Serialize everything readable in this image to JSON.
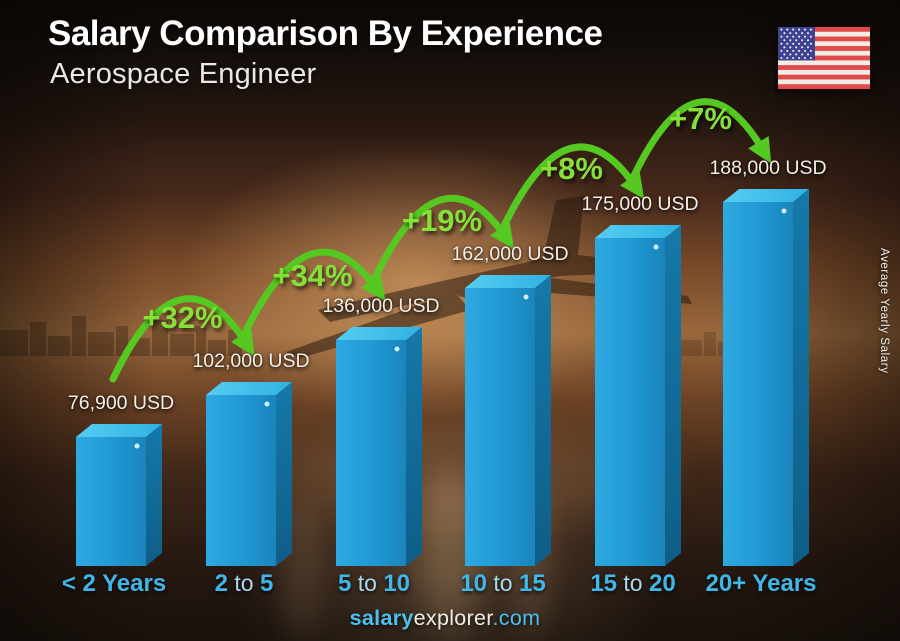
{
  "header": {
    "title": "Salary Comparison By Experience",
    "subtitle": "Aerospace Engineer"
  },
  "y_axis_label": "Average Yearly Salary",
  "footer": {
    "bold": "salary",
    "regular": "explorer",
    "domain": ".com"
  },
  "flag": {
    "country": "United States"
  },
  "colors": {
    "bar_front": "#1f9ad6",
    "bar_top": "#4cc7ee",
    "bar_side": "#11729f",
    "arrow_green": "#55c822",
    "percent_green": "#86e03a",
    "axis_cyan": "#41b6e8",
    "axis_cyan_light": "#a8d9ee",
    "value_text": "#f4efe7",
    "footer_cyan": "#4cc0ee"
  },
  "chart_data": {
    "type": "bar",
    "title": "Salary Comparison By Experience",
    "subtitle": "Aerospace Engineer",
    "currency": "USD",
    "ylabel": "Average Yearly Salary",
    "ylim": [
      0,
      200000
    ],
    "grid": false,
    "legend": false,
    "categories": [
      "< 2 Years",
      "2 to 5",
      "5 to 10",
      "10 to 15",
      "15 to 20",
      "20+ Years"
    ],
    "values": [
      76900,
      102000,
      136000,
      162000,
      175000,
      188000
    ],
    "value_labels": [
      "76,900 USD",
      "102,000 USD",
      "136,000 USD",
      "162,000 USD",
      "175,000 USD",
      "188,000 USD"
    ],
    "increases": [
      "+32%",
      "+34%",
      "+19%",
      "+8%",
      "+7%"
    ],
    "category_segments": [
      {
        "segments": [
          {
            "text": "< 2 Years",
            "bold": true
          }
        ]
      },
      {
        "segments": [
          {
            "text": "2",
            "bold": true
          },
          {
            "text": " to ",
            "bold": false
          },
          {
            "text": "5",
            "bold": true
          }
        ]
      },
      {
        "segments": [
          {
            "text": "5",
            "bold": true
          },
          {
            "text": " to ",
            "bold": false
          },
          {
            "text": "10",
            "bold": true
          }
        ]
      },
      {
        "segments": [
          {
            "text": "10",
            "bold": true
          },
          {
            "text": " to ",
            "bold": false
          },
          {
            "text": "15",
            "bold": true
          }
        ]
      },
      {
        "segments": [
          {
            "text": "15",
            "bold": true
          },
          {
            "text": " to ",
            "bold": false
          },
          {
            "text": "20",
            "bold": true
          }
        ]
      },
      {
        "segments": [
          {
            "text": "20+ Years",
            "bold": true
          }
        ]
      }
    ]
  }
}
